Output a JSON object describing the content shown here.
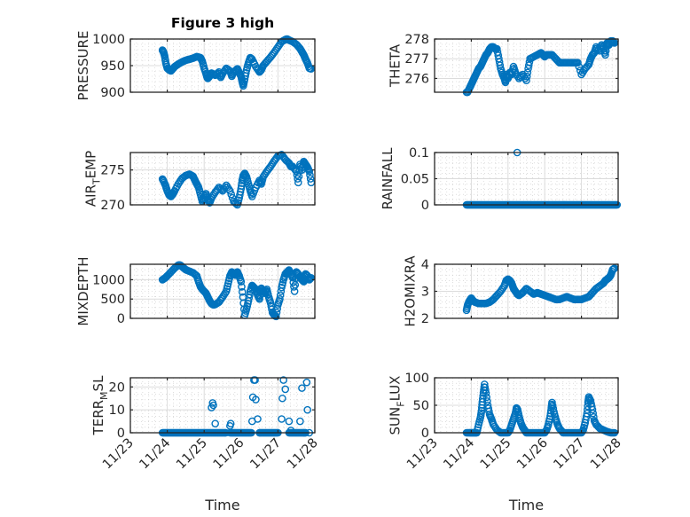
{
  "figure": {
    "title": "Figure 3 high"
  },
  "colors": {
    "marker": "#0072BD",
    "axes": "#262626",
    "grid": "#dcdcdc",
    "minor_grid": "#c8c8c8"
  },
  "chart_data": [
    {
      "type": "scatter",
      "position": "row1-left",
      "title": "Figure 3 high",
      "ylabel": "PRESSURE",
      "ylabel_sub": null,
      "xlabel": "",
      "xlim": [
        0,
        5
      ],
      "ylim": [
        900,
        1000
      ],
      "xticks": [
        0,
        1,
        2,
        3,
        4,
        5
      ],
      "xticklabels": [
        "11/23",
        "11/24",
        "11/25",
        "11/26",
        "11/27",
        "11/28"
      ],
      "show_xticklabels": false,
      "yticks": [
        900,
        950,
        1000
      ],
      "yticklabels": [
        "900",
        "950",
        "1000"
      ],
      "grid": true,
      "minor_grid": true,
      "x": [
        0.87,
        0.9,
        0.93,
        0.96,
        1.0,
        1.05,
        1.1,
        1.15,
        1.2,
        1.3,
        1.4,
        1.5,
        1.6,
        1.7,
        1.8,
        1.9,
        1.95,
        2.0,
        2.05,
        2.08,
        2.1,
        2.15,
        2.2,
        2.3,
        2.4,
        2.45,
        2.5,
        2.6,
        2.7,
        2.75,
        2.8,
        2.9,
        2.95,
        3.0,
        3.03,
        3.06,
        3.1,
        3.15,
        3.2,
        3.25,
        3.3,
        3.4,
        3.5,
        3.55,
        3.6,
        3.7,
        3.8,
        3.9,
        4.0,
        4.1,
        4.2,
        4.25,
        4.3,
        4.4,
        4.5,
        4.6,
        4.65,
        4.7,
        4.75,
        4.8,
        4.85,
        4.9
      ],
      "y": [
        979,
        975,
        968,
        955,
        945,
        942,
        940,
        944,
        948,
        953,
        957,
        960,
        962,
        964,
        967,
        965,
        958,
        945,
        935,
        928,
        926,
        930,
        936,
        932,
        938,
        928,
        935,
        945,
        940,
        930,
        938,
        944,
        937,
        930,
        920,
        912,
        925,
        942,
        955,
        965,
        962,
        948,
        938,
        942,
        950,
        958,
        966,
        975,
        985,
        995,
        999,
        1000,
        998,
        995,
        990,
        982,
        976,
        970,
        962,
        955,
        945,
        944
      ]
    },
    {
      "type": "scatter",
      "position": "row1-right",
      "ylabel": "THETA",
      "ylabel_sub": null,
      "xlabel": "",
      "xlim": [
        0,
        5
      ],
      "ylim": [
        275.3,
        278
      ],
      "xticks": [
        0,
        1,
        2,
        3,
        4,
        5
      ],
      "xticklabels": [
        "11/23",
        "11/24",
        "11/25",
        "11/26",
        "11/27",
        "11/28"
      ],
      "show_xticklabels": false,
      "yticks": [
        276,
        277,
        278
      ],
      "yticklabels": [
        "276",
        "277",
        "278"
      ],
      "grid": true,
      "minor_grid": true,
      "x": [
        0.87,
        0.9,
        0.95,
        1.0,
        1.05,
        1.1,
        1.15,
        1.2,
        1.25,
        1.3,
        1.35,
        1.4,
        1.45,
        1.5,
        1.55,
        1.6,
        1.65,
        1.7,
        1.75,
        1.8,
        1.85,
        1.9,
        1.93,
        1.96,
        2.0,
        2.05,
        2.1,
        2.15,
        2.2,
        2.3,
        2.4,
        2.5,
        2.55,
        2.6,
        2.7,
        2.8,
        2.9,
        2.95,
        3.0,
        3.05,
        3.1,
        3.2,
        3.3,
        3.4,
        3.5,
        3.6,
        3.7,
        3.8,
        3.9,
        4.0,
        4.1,
        4.2,
        4.25,
        4.3,
        4.35,
        4.4,
        4.5,
        4.55,
        4.6,
        4.65,
        4.7,
        4.75,
        4.8,
        4.85,
        4.9
      ],
      "y": [
        275.3,
        275.3,
        275.5,
        275.7,
        275.9,
        276.1,
        276.3,
        276.5,
        276.6,
        276.8,
        277.0,
        277.2,
        277.3,
        277.5,
        277.6,
        277.6,
        277.5,
        277.5,
        277.0,
        276.5,
        276.2,
        276.0,
        275.8,
        276.2,
        276.0,
        276.3,
        276.2,
        276.6,
        276.3,
        276.0,
        276.2,
        275.9,
        276.5,
        277.0,
        277.1,
        277.2,
        277.3,
        277.2,
        277.1,
        277.2,
        277.2,
        277.2,
        277.0,
        276.8,
        276.8,
        276.8,
        276.8,
        276.8,
        276.8,
        276.2,
        276.5,
        276.7,
        277.0,
        277.2,
        277.3,
        277.6,
        277.4,
        277.7,
        277.5,
        277.2,
        277.8,
        277.7,
        277.9,
        277.9,
        277.8
      ]
    },
    {
      "type": "scatter",
      "position": "row2-left",
      "ylabel": "AIR",
      "ylabel_sub": "T",
      "ylabel_rest": "EMP",
      "xlabel": "",
      "xlim": [
        0,
        5
      ],
      "ylim": [
        270,
        277.5
      ],
      "xticks": [
        0,
        1,
        2,
        3,
        4,
        5
      ],
      "xticklabels": [
        "11/23",
        "11/24",
        "11/25",
        "11/26",
        "11/27",
        "11/28"
      ],
      "show_xticklabels": false,
      "yticks": [
        270,
        275
      ],
      "yticklabels": [
        "270",
        "275"
      ],
      "grid": true,
      "minor_grid": true,
      "x": [
        0.87,
        0.9,
        0.95,
        1.0,
        1.05,
        1.1,
        1.15,
        1.2,
        1.3,
        1.4,
        1.5,
        1.6,
        1.7,
        1.75,
        1.8,
        1.85,
        1.9,
        1.95,
        2.0,
        2.05,
        2.1,
        2.15,
        2.2,
        2.3,
        2.4,
        2.5,
        2.6,
        2.7,
        2.8,
        2.9,
        2.95,
        3.0,
        3.03,
        3.06,
        3.1,
        3.15,
        3.2,
        3.25,
        3.3,
        3.4,
        3.5,
        3.55,
        3.6,
        3.7,
        3.8,
        3.9,
        4.0,
        4.1,
        4.2,
        4.3,
        4.35,
        4.4,
        4.5,
        4.55,
        4.6,
        4.65,
        4.7,
        4.75,
        4.8,
        4.85,
        4.9
      ],
      "y": [
        273.7,
        273.4,
        272.8,
        272.0,
        271.4,
        271.2,
        271.5,
        272.0,
        273.0,
        273.8,
        274.2,
        274.4,
        274.1,
        273.5,
        273.0,
        272.5,
        271.5,
        270.5,
        271.0,
        271.6,
        270.8,
        270.3,
        271.0,
        271.8,
        272.5,
        272.0,
        272.8,
        272.0,
        270.5,
        270.0,
        271.0,
        272.3,
        273.5,
        274.2,
        274.5,
        274.0,
        273.0,
        272.0,
        271.2,
        272.5,
        273.5,
        273.0,
        274.0,
        274.8,
        275.5,
        276.3,
        277.0,
        277.2,
        276.5,
        276.0,
        275.5,
        275.5,
        274.8,
        273.2,
        275.8,
        275.0,
        276.2,
        275.8,
        275.4,
        274.8,
        273.2
      ]
    },
    {
      "type": "scatter",
      "position": "row2-right",
      "ylabel": "RAINFALL",
      "ylabel_sub": null,
      "xlabel": "",
      "xlim": [
        0,
        5
      ],
      "ylim": [
        0,
        0.1
      ],
      "xticks": [
        0,
        1,
        2,
        3,
        4,
        5
      ],
      "xticklabels": [
        "11/23",
        "11/24",
        "11/25",
        "11/26",
        "11/27",
        "11/28"
      ],
      "show_xticklabels": false,
      "yticks": [
        0,
        0.05,
        0.1
      ],
      "yticklabels": [
        "0",
        "0.05",
        "0.1"
      ],
      "grid": true,
      "minor_grid": true,
      "zero_range": [
        0.87,
        4.97
      ],
      "nonzero_points": [
        {
          "x": 2.25,
          "y": 0.1
        }
      ]
    },
    {
      "type": "scatter",
      "position": "row3-left",
      "ylabel": "MIXDEPTH",
      "ylabel_sub": null,
      "xlabel": "",
      "xlim": [
        0,
        5
      ],
      "ylim": [
        0,
        1400
      ],
      "xticks": [
        0,
        1,
        2,
        3,
        4,
        5
      ],
      "xticklabels": [
        "11/23",
        "11/24",
        "11/25",
        "11/26",
        "11/27",
        "11/28"
      ],
      "show_xticklabels": false,
      "yticks": [
        0,
        500,
        1000
      ],
      "yticklabels": [
        "0",
        "500",
        "1000"
      ],
      "grid": true,
      "minor_grid": true,
      "x": [
        0.87,
        0.95,
        1.0,
        1.1,
        1.2,
        1.3,
        1.35,
        1.4,
        1.45,
        1.5,
        1.6,
        1.7,
        1.8,
        1.85,
        1.9,
        1.95,
        2.0,
        2.05,
        2.1,
        2.15,
        2.2,
        2.25,
        2.3,
        2.4,
        2.5,
        2.6,
        2.65,
        2.7,
        2.75,
        2.8,
        2.85,
        2.9,
        2.95,
        3.0,
        3.05,
        3.1,
        3.15,
        3.2,
        3.25,
        3.3,
        3.35,
        3.4,
        3.45,
        3.5,
        3.55,
        3.6,
        3.65,
        3.7,
        3.75,
        3.8,
        3.85,
        3.9,
        3.95,
        4.0,
        4.05,
        4.1,
        4.15,
        4.2,
        4.25,
        4.3,
        4.35,
        4.4,
        4.45,
        4.5,
        4.55,
        4.6,
        4.65,
        4.7,
        4.75,
        4.8,
        4.85,
        4.9
      ],
      "y": [
        1000,
        1050,
        1100,
        1200,
        1300,
        1380,
        1380,
        1340,
        1300,
        1260,
        1220,
        1180,
        1100,
        950,
        820,
        750,
        700,
        650,
        550,
        450,
        380,
        350,
        360,
        420,
        550,
        700,
        900,
        1100,
        1200,
        1150,
        1120,
        1200,
        1100,
        950,
        550,
        80,
        250,
        450,
        700,
        850,
        800,
        750,
        600,
        500,
        780,
        700,
        650,
        750,
        550,
        400,
        150,
        80,
        50,
        350,
        500,
        800,
        1000,
        1150,
        1200,
        1250,
        1150,
        1050,
        700,
        1200,
        1150,
        1050,
        1000,
        950,
        1150,
        1100,
        1000,
        1050
      ]
    },
    {
      "type": "scatter",
      "position": "row3-right",
      "ylabel": "H2OMIXRA",
      "ylabel_sub": null,
      "xlabel": "",
      "xlim": [
        0,
        5
      ],
      "ylim": [
        2,
        4
      ],
      "xticks": [
        0,
        1,
        2,
        3,
        4,
        5
      ],
      "xticklabels": [
        "11/23",
        "11/24",
        "11/25",
        "11/26",
        "11/27",
        "11/28"
      ],
      "show_xticklabels": false,
      "yticks": [
        2,
        3,
        4
      ],
      "yticklabels": [
        "2",
        "3",
        "4"
      ],
      "grid": true,
      "minor_grid": true,
      "x": [
        0.87,
        0.9,
        0.95,
        1.0,
        1.05,
        1.1,
        1.2,
        1.3,
        1.4,
        1.5,
        1.6,
        1.7,
        1.8,
        1.9,
        1.95,
        2.0,
        2.05,
        2.1,
        2.15,
        2.2,
        2.25,
        2.3,
        2.4,
        2.5,
        2.6,
        2.7,
        2.8,
        2.9,
        3.0,
        3.1,
        3.2,
        3.3,
        3.4,
        3.5,
        3.6,
        3.7,
        3.8,
        3.9,
        4.0,
        4.1,
        4.2,
        4.3,
        4.4,
        4.5,
        4.6,
        4.65,
        4.7,
        4.75,
        4.8,
        4.85,
        4.9
      ],
      "y": [
        2.3,
        2.5,
        2.65,
        2.75,
        2.65,
        2.6,
        2.55,
        2.55,
        2.55,
        2.6,
        2.7,
        2.85,
        3.0,
        3.2,
        3.4,
        3.45,
        3.4,
        3.3,
        3.1,
        3.0,
        2.9,
        2.85,
        2.95,
        3.1,
        3.0,
        2.9,
        2.95,
        2.9,
        2.85,
        2.8,
        2.75,
        2.7,
        2.7,
        2.75,
        2.8,
        2.75,
        2.7,
        2.7,
        2.7,
        2.75,
        2.8,
        2.95,
        3.1,
        3.2,
        3.3,
        3.4,
        3.45,
        3.5,
        3.6,
        3.8,
        3.85
      ]
    },
    {
      "type": "scatter",
      "position": "row4-left",
      "ylabel": "TERR",
      "ylabel_sub": "M",
      "ylabel_rest": "SL",
      "xlabel": "Time",
      "xlim": [
        0,
        5
      ],
      "ylim": [
        0,
        24
      ],
      "xticks": [
        0,
        1,
        2,
        3,
        4,
        5
      ],
      "xticklabels": [
        "11/23",
        "11/24",
        "11/25",
        "11/26",
        "11/27",
        "11/28"
      ],
      "show_xticklabels": true,
      "yticks": [
        0,
        10,
        20
      ],
      "yticklabels": [
        "0",
        "10",
        "20"
      ],
      "grid": true,
      "minor_grid": true,
      "zero_ranges": [
        [
          0.87,
          2.6
        ],
        [
          2.7,
          3.3
        ],
        [
          3.5,
          4.0
        ],
        [
          4.3,
          4.75
        ]
      ],
      "x": [
        2.2,
        2.23,
        2.25,
        2.3,
        2.7,
        2.72,
        3.3,
        3.32,
        3.35,
        3.38,
        3.4,
        3.45,
        3.5,
        4.1,
        4.12,
        4.15,
        4.2,
        4.3,
        4.35,
        4.6,
        4.65,
        4.7,
        4.75,
        4.78,
        4.8,
        4.85
      ],
      "y": [
        11,
        13,
        12,
        4,
        3,
        4,
        5,
        15.5,
        23,
        23,
        14.5,
        6,
        0,
        6,
        15,
        23,
        19,
        5,
        1,
        5,
        19.5,
        0,
        0,
        22,
        10,
        0
      ]
    },
    {
      "type": "scatter",
      "position": "row4-right",
      "ylabel": "SUN",
      "ylabel_sub": "F",
      "ylabel_rest": "LUX",
      "xlabel": "Time",
      "xlim": [
        0,
        5
      ],
      "ylim": [
        0,
        100
      ],
      "xticks": [
        0,
        1,
        2,
        3,
        4,
        5
      ],
      "xticklabels": [
        "11/23",
        "11/24",
        "11/25",
        "11/26",
        "11/27",
        "11/28"
      ],
      "show_xticklabels": true,
      "yticks": [
        0,
        50,
        100
      ],
      "yticklabels": [
        "0",
        "50",
        "100"
      ],
      "grid": true,
      "minor_grid": true,
      "x": [
        0.87,
        0.95,
        1.0,
        1.05,
        1.1,
        1.15,
        1.2,
        1.25,
        1.28,
        1.3,
        1.33,
        1.36,
        1.4,
        1.45,
        1.5,
        1.55,
        1.6,
        1.7,
        1.8,
        1.9,
        2.0,
        2.05,
        2.1,
        2.15,
        2.2,
        2.23,
        2.26,
        2.3,
        2.35,
        2.4,
        2.45,
        2.5,
        2.6,
        2.7,
        2.8,
        2.9,
        3.0,
        3.05,
        3.1,
        3.15,
        3.18,
        3.2,
        3.25,
        3.3,
        3.35,
        3.4,
        3.5,
        3.6,
        3.7,
        3.8,
        3.9,
        4.0,
        4.05,
        4.1,
        4.15,
        4.18,
        4.2,
        4.25,
        4.3,
        4.35,
        4.4,
        4.5,
        4.6,
        4.7,
        4.8,
        4.9
      ],
      "y": [
        0,
        0,
        0,
        0,
        0,
        0,
        15,
        28,
        40,
        56,
        73,
        88,
        72,
        50,
        33,
        25,
        15,
        5,
        0,
        0,
        0,
        5,
        15,
        25,
        35,
        45,
        42,
        30,
        18,
        10,
        5,
        0,
        0,
        0,
        0,
        0,
        0,
        5,
        15,
        30,
        45,
        55,
        38,
        25,
        15,
        8,
        0,
        0,
        0,
        0,
        0,
        0,
        5,
        18,
        35,
        55,
        65,
        58,
        42,
        22,
        15,
        8,
        5,
        2,
        0,
        0
      ]
    }
  ]
}
